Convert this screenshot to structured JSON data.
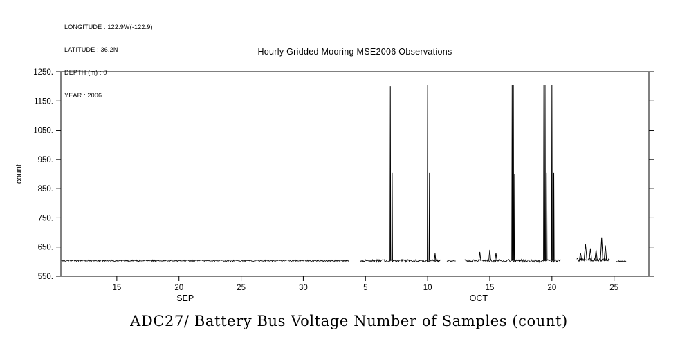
{
  "meta": {
    "lines": [
      "LONGITUDE : 122.9W(-122.9)",
      "LATITUDE : 36.2N",
      "DEPTH (m) : 0",
      "YEAR : 2006"
    ]
  },
  "title": "Hourly Gridded Mooring MSE2006 Observations",
  "bottom_title": "ADC27/ Battery Bus Voltage Number of Samples (count)",
  "colors": {
    "line": "#000000",
    "background": "#ffffff"
  },
  "chart_data": {
    "type": "line",
    "title": "Hourly Gridded Mooring MSE2006 Observations",
    "subtitle": "ADC27/ Battery Bus Voltage Number of Samples (count)",
    "ylabel": "count",
    "ylim": [
      550,
      1250
    ],
    "yticks": [
      {
        "value": 550,
        "label": "550."
      },
      {
        "value": 650,
        "label": "650."
      },
      {
        "value": 750,
        "label": "750."
      },
      {
        "value": 850,
        "label": "850."
      },
      {
        "value": 950,
        "label": "950."
      },
      {
        "value": 1050,
        "label": "1050."
      },
      {
        "value": 1150,
        "label": "1150."
      },
      {
        "value": 1250,
        "label": "1250."
      }
    ],
    "x_unit": "day-of-record (SEP day = n, OCT day = 30+n), YEAR 2006",
    "xlim_days": [
      10.5,
      57.8
    ],
    "xticks": [
      {
        "day": 15,
        "label": "15"
      },
      {
        "day": 20,
        "label": "20"
      },
      {
        "day": 25,
        "label": "25"
      },
      {
        "day": 30,
        "label": "30"
      },
      {
        "day": 35,
        "label": "5"
      },
      {
        "day": 40,
        "label": "10"
      },
      {
        "day": 45,
        "label": "15"
      },
      {
        "day": 50,
        "label": "20"
      },
      {
        "day": 55,
        "label": "25"
      }
    ],
    "months": [
      {
        "label": "SEP",
        "day": 20.5
      },
      {
        "label": "OCT",
        "day": 44.1
      }
    ],
    "baseline": 603,
    "segments": [
      {
        "start": 10.5,
        "end": 33.7,
        "baseline": 603,
        "noise": 2.5
      },
      {
        "start": 34.6,
        "end": 41.05,
        "baseline": 603,
        "noise": 4
      },
      {
        "start": 41.55,
        "end": 42.27,
        "baseline": 602,
        "noise": 3
      },
      {
        "start": 43.0,
        "end": 50.73,
        "baseline": 603,
        "noise": 5
      },
      {
        "start": 52.0,
        "end": 54.63,
        "baseline": 606,
        "noise": 5
      },
      {
        "start": 55.18,
        "end": 56.0,
        "baseline": 601,
        "noise": 2
      }
    ],
    "spikes": [
      {
        "day": 37.0,
        "value": 1200,
        "w": 0.03
      },
      {
        "day": 37.15,
        "value": 905,
        "w": 0.03
      },
      {
        "day": 40.0,
        "value": 1205,
        "w": 0.03
      },
      {
        "day": 40.15,
        "value": 905,
        "w": 0.03
      },
      {
        "day": 40.6,
        "value": 628,
        "w": 0.06
      },
      {
        "day": 44.2,
        "value": 633,
        "w": 0.08
      },
      {
        "day": 45.0,
        "value": 640,
        "w": 0.08
      },
      {
        "day": 45.5,
        "value": 630,
        "w": 0.08
      },
      {
        "day": 46.8,
        "value": 1205,
        "w": 0.03
      },
      {
        "day": 46.9,
        "value": 1205,
        "w": 0.03
      },
      {
        "day": 47.0,
        "value": 900,
        "w": 0.03
      },
      {
        "day": 49.35,
        "value": 1205,
        "w": 0.03
      },
      {
        "day": 49.45,
        "value": 1205,
        "w": 0.03
      },
      {
        "day": 49.58,
        "value": 905,
        "w": 0.03
      },
      {
        "day": 50.0,
        "value": 1205,
        "w": 0.03
      },
      {
        "day": 50.15,
        "value": 905,
        "w": 0.03
      },
      {
        "day": 52.3,
        "value": 630,
        "w": 0.1
      },
      {
        "day": 52.7,
        "value": 660,
        "w": 0.12
      },
      {
        "day": 53.1,
        "value": 645,
        "w": 0.1
      },
      {
        "day": 53.55,
        "value": 640,
        "w": 0.1
      },
      {
        "day": 54.0,
        "value": 683,
        "w": 0.1
      },
      {
        "day": 54.3,
        "value": 655,
        "w": 0.1
      }
    ],
    "grid": false,
    "legend": "none"
  }
}
